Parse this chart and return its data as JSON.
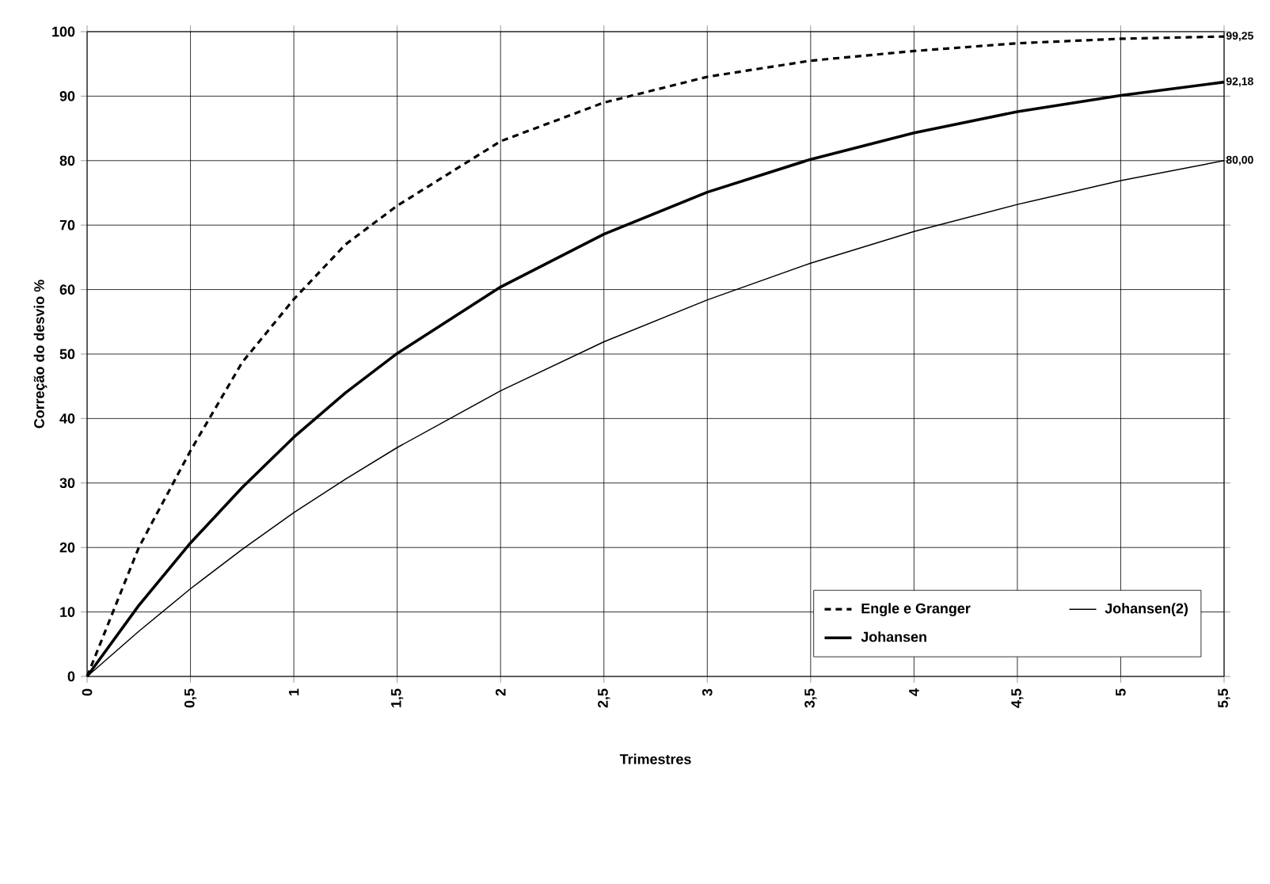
{
  "chart_data": {
    "type": "line",
    "xlabel": "Trimestres",
    "ylabel": "Correção do desvio %",
    "x": [
      0,
      0.25,
      0.5,
      0.75,
      1,
      1.25,
      1.5,
      2,
      2.5,
      3,
      3.5,
      4,
      4.5,
      5,
      5.5
    ],
    "series": [
      {
        "name": "Engle e Granger",
        "color": "#000000",
        "line_style": "dashed",
        "values": [
          0,
          20,
          35,
          48.7,
          58.5,
          67,
          73,
          83,
          89,
          93,
          95.5,
          97,
          98.2,
          98.9,
          99.25
        ],
        "value_labels": [
          null,
          null,
          null,
          null,
          null,
          null,
          null,
          null,
          null,
          null,
          null,
          null,
          null,
          null,
          "99,25"
        ]
      },
      {
        "name": "Johansen(2)",
        "color": "#000000",
        "line_style": "solid",
        "values": [
          0,
          7,
          13.6,
          19.7,
          25.4,
          30.6,
          35.5,
          44.3,
          51.9,
          58.4,
          64.1,
          69,
          73.2,
          76.9,
          80
        ],
        "value_labels": [
          null,
          null,
          null,
          null,
          null,
          null,
          null,
          null,
          null,
          null,
          null,
          null,
          null,
          null,
          "80,00"
        ]
      },
      {
        "name": "Johansen",
        "color": "#000000",
        "line_style": "solid",
        "values": [
          0,
          11,
          20.7,
          29.3,
          37.1,
          44,
          50.1,
          60.4,
          68.6,
          75.1,
          80.2,
          84.3,
          87.6,
          90.1,
          92.18
        ],
        "value_labels": [
          null,
          null,
          null,
          null,
          null,
          null,
          null,
          null,
          null,
          null,
          null,
          null,
          null,
          null,
          "92,18"
        ]
      }
    ],
    "xlim": [
      0,
      5.5
    ],
    "ylim": [
      0,
      100
    ],
    "xticks": [
      0,
      {
        "value": 0.5,
        "label": "0,5"
      },
      1,
      {
        "value": 1.5,
        "label": "1,5"
      },
      2,
      {
        "value": 2.5,
        "label": "2,5"
      },
      3,
      {
        "value": 3.5,
        "label": "3,5"
      },
      4,
      {
        "value": 4.5,
        "label": "4,5"
      },
      5,
      {
        "value": 5.5,
        "label": "5,5"
      }
    ],
    "yticks": [
      0,
      10,
      20,
      30,
      40,
      50,
      60,
      70,
      80,
      90,
      100
    ],
    "grid": true,
    "legend": "bottom right",
    "marker": "none"
  }
}
